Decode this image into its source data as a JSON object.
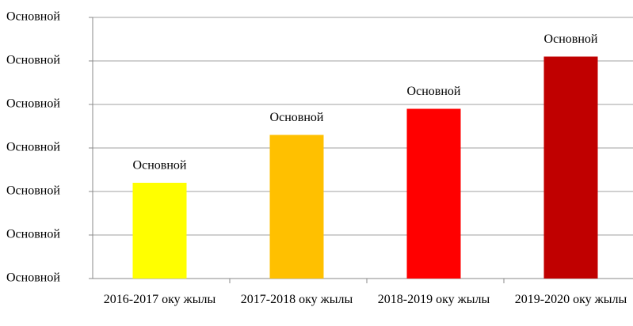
{
  "chart_data": {
    "type": "bar",
    "categories": [
      "2016-2017 оку жылы",
      "2017-2018 оку жылы",
      "2018-2019 оку жылы",
      "2019-2020 оку жылы"
    ],
    "values": [
      2.2,
      3.3,
      3.9,
      5.1
    ],
    "value_labels": [
      "Основной",
      "Основной",
      "Основной",
      "Основной"
    ],
    "colors": [
      "#ffff00",
      "#ffc000",
      "#ff0000",
      "#c00000"
    ],
    "ylim": [
      0,
      6
    ],
    "yticks": [
      {
        "value": 0,
        "label": "Основной"
      },
      {
        "value": 1,
        "label": "Основной"
      },
      {
        "value": 2,
        "label": "Основной"
      },
      {
        "value": 3,
        "label": "Основной"
      },
      {
        "value": 4,
        "label": "Основной"
      },
      {
        "value": 5,
        "label": "Основной"
      },
      {
        "value": 6,
        "label": "Основной"
      }
    ],
    "grid": true
  }
}
